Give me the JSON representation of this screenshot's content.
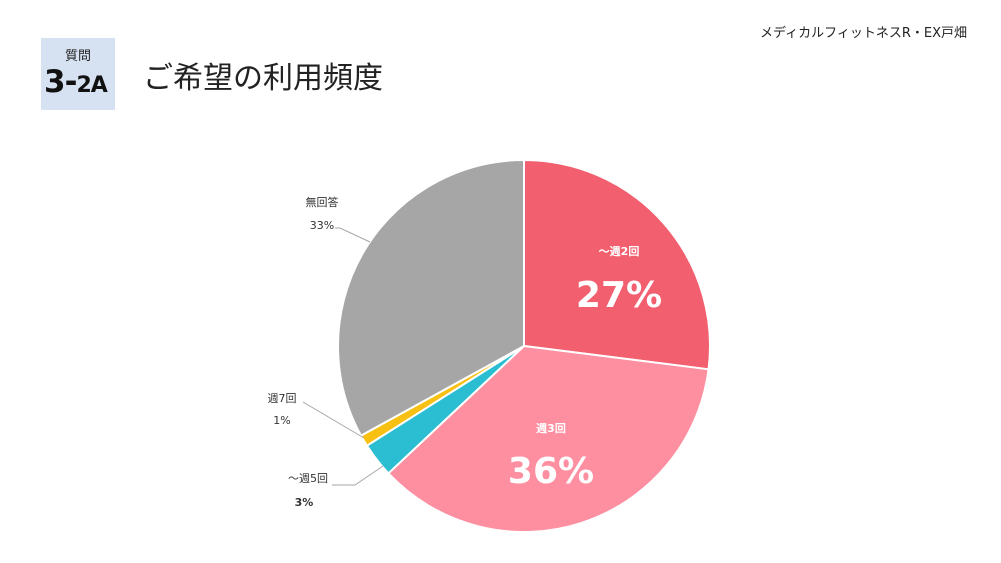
{
  "header": {
    "org_name": "メディカルフィットネスR・EX戸畑",
    "question_label": "質問",
    "question_number": "3-",
    "question_sub": "2A",
    "title": "ご希望の利用頻度"
  },
  "chart_data": {
    "type": "pie",
    "title": "",
    "start_angle_deg": 0,
    "direction": "clockwise",
    "slices": [
      {
        "label": "〜週2回",
        "value": 27,
        "display": "27%",
        "color": "#f25f6e",
        "label_style": "inside"
      },
      {
        "label": "週3回",
        "value": 36,
        "display": "36%",
        "color": "#fd8fa0",
        "label_style": "inside"
      },
      {
        "label": "〜週5回",
        "value": 3,
        "display": "3%",
        "color": "#2bbdd1",
        "label_style": "outside"
      },
      {
        "label": "週7回",
        "value": 1,
        "display": "1%",
        "color": "#f8c012",
        "label_style": "outside"
      },
      {
        "label": "無回答",
        "value": 33,
        "display": "33%",
        "color": "#a6a6a6",
        "label_style": "outside"
      }
    ]
  }
}
